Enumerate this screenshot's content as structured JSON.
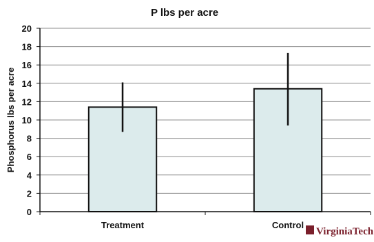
{
  "chart_data": {
    "type": "bar",
    "title": "P lbs per acre",
    "xlabel": "",
    "ylabel": "Phosphorus lbs per acre",
    "categories": [
      "Treatment",
      "Control"
    ],
    "values": [
      11.4,
      13.4
    ],
    "error_bars": [
      {
        "low": 8.7,
        "high": 14.1
      },
      {
        "low": 9.4,
        "high": 17.3
      }
    ],
    "ylim": [
      0,
      20
    ],
    "yticks": [
      0,
      2,
      4,
      6,
      8,
      10,
      12,
      14,
      16,
      18,
      20
    ],
    "grid": true,
    "legend": "none"
  },
  "colors": {
    "bar_fill": "#dcebec",
    "bar_edge": "#111111",
    "grid": "#8c8c8c",
    "error_bar": "#111111",
    "logo": "#7a1f2b"
  },
  "logo": {
    "text": "VirginiaTech"
  }
}
